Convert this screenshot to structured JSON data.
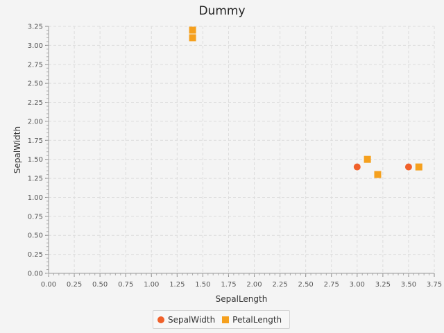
{
  "chart_data": {
    "type": "scatter",
    "title": "Dummy",
    "xlabel": "SepalLength",
    "ylabel": "SepalWidth",
    "xlim": [
      0,
      3.75
    ],
    "ylim": [
      0,
      3.25
    ],
    "x_ticks": [
      "0.00",
      "0.25",
      "0.50",
      "0.75",
      "1.00",
      "1.25",
      "1.50",
      "1.75",
      "2.00",
      "2.25",
      "2.50",
      "2.75",
      "3.00",
      "3.25",
      "3.50",
      "3.75"
    ],
    "y_ticks": [
      "0.00",
      "0.25",
      "0.50",
      "0.75",
      "1.00",
      "1.25",
      "1.50",
      "1.75",
      "2.00",
      "2.25",
      "2.50",
      "2.75",
      "3.00",
      "3.25"
    ],
    "grid": true,
    "legend_position": "bottom-center",
    "series": [
      {
        "name": "SepalWidth",
        "marker": "circle",
        "color": "#f0602a",
        "points": [
          {
            "x": 3.0,
            "y": 1.4
          },
          {
            "x": 3.5,
            "y": 1.4
          }
        ]
      },
      {
        "name": "PetalLength",
        "marker": "square",
        "color": "#f5a01e",
        "points": [
          {
            "x": 1.4,
            "y": 3.2
          },
          {
            "x": 1.4,
            "y": 3.1
          },
          {
            "x": 3.1,
            "y": 1.5
          },
          {
            "x": 3.2,
            "y": 1.3
          },
          {
            "x": 3.6,
            "y": 1.4
          }
        ]
      }
    ]
  }
}
